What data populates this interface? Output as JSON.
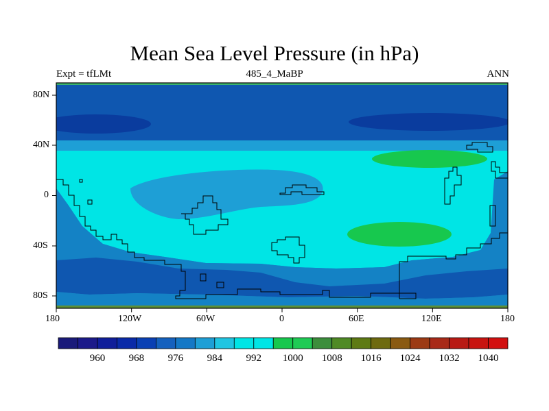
{
  "title": "Mean Sea Level Pressure (in hPa)",
  "subtitle_left": "Expt = tfLMt",
  "subtitle_center": "485_4_MaBP",
  "subtitle_right": "ANN",
  "colors": {
    "ocean_c1": "#0F57B0",
    "ocean_c2": "#1482C5",
    "ocean_c3": "#1E9FD6",
    "ocean_c4": "#00E5E5",
    "deep": "#0A3C9E",
    "green": "#17C84E",
    "top_band": "#3CB36E",
    "bottom_band": "#5C8F39"
  },
  "chart_data": {
    "type": "filled-contour-map",
    "variable": "Mean Sea Level Pressure",
    "units": "hPa",
    "x_range": [
      -180,
      180
    ],
    "y_range": [
      -90,
      90
    ],
    "x_ticks": [
      "180",
      "120W",
      "60W",
      "0",
      "60E",
      "120E",
      "180"
    ],
    "y_ticks": [
      "80N",
      "40N",
      "0",
      "40S",
      "80S"
    ],
    "colorbar_labels": [
      "960",
      "968",
      "976",
      "984",
      "992",
      "1000",
      "1008",
      "1016",
      "1024",
      "1032",
      "1040"
    ],
    "colorbar_colors": [
      "#1A1A7A",
      "#1C1A8A",
      "#101E9A",
      "#0A2AA8",
      "#0A40B4",
      "#1561BE",
      "#1478C6",
      "#1E9FD6",
      "#20C5E2",
      "#00E5E5",
      "#00E5E5",
      "#17C84E",
      "#1FCB55",
      "#3C8E3C",
      "#4F8A25",
      "#5E7A14",
      "#6E6A10",
      "#8A5A12",
      "#9C3A14",
      "#A82A18",
      "#B81A14",
      "#C81410",
      "#D21010"
    ]
  }
}
